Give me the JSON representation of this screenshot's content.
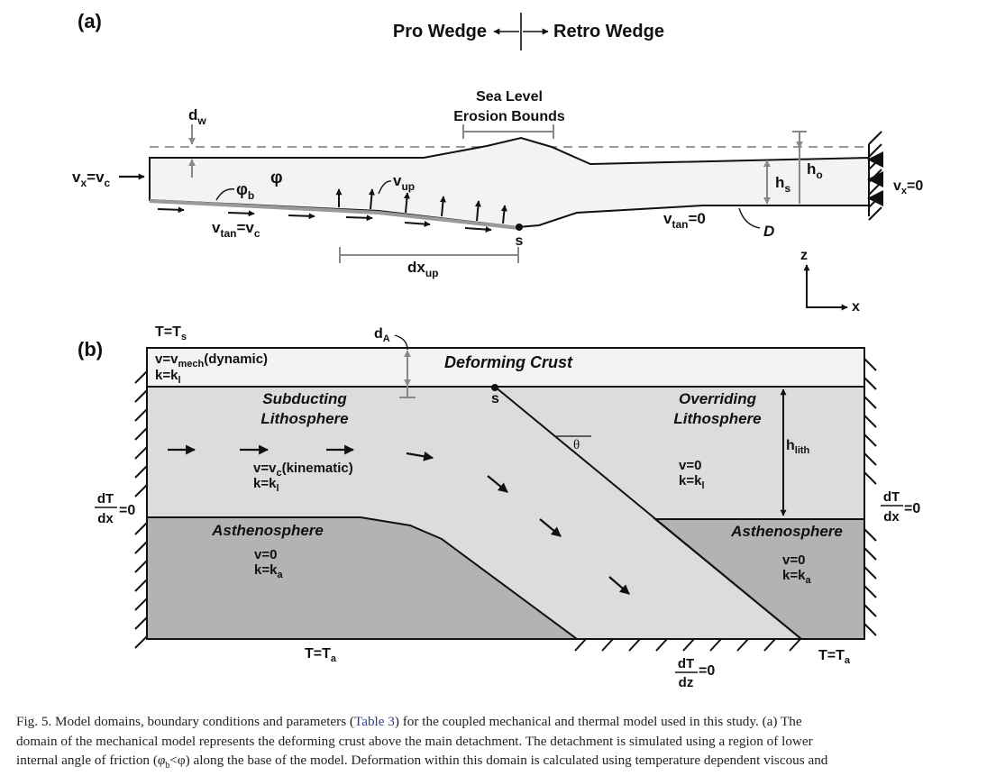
{
  "panel_a": {
    "label": "(a)",
    "header": {
      "pro": "Pro Wedge",
      "retro": "Retro Wedge"
    },
    "sea_level": {
      "line1": "Sea Level",
      "line2": "Erosion Bounds"
    },
    "dw": {
      "base": "d",
      "sub": "w"
    },
    "vx_left": {
      "a": "v",
      "b": "x",
      "c": "=v",
      "d": "c"
    },
    "phi": "φ",
    "phi_b": {
      "base": "φ",
      "sub": "b"
    },
    "v_up": {
      "base": "v",
      "sub": "up"
    },
    "vtan_left": {
      "a": "v",
      "b": "tan",
      "c": "=v",
      "d": "c"
    },
    "s_label": "s",
    "dx_up": {
      "base": "dx",
      "sub": "up"
    },
    "vtan_right": {
      "a": "v",
      "b": "tan",
      "c": "=0"
    },
    "D_label": "D",
    "hs": {
      "base": "h",
      "sub": "s"
    },
    "ho": {
      "base": "h",
      "sub": "o"
    },
    "vx_right": {
      "a": "v",
      "b": "x",
      "c": "=0"
    },
    "axis_z": "z",
    "axis_x": "x"
  },
  "panel_b": {
    "label": "(b)",
    "T_top": {
      "a": "T=T",
      "b": "s"
    },
    "dA": {
      "base": "d",
      "sub": "A"
    },
    "crust_v": {
      "a": "v=v",
      "b": "mech",
      "c": "(dynamic)"
    },
    "crust_k": {
      "a": "k=k",
      "b": "l"
    },
    "deforming_crust": "Deforming Crust",
    "subducting": {
      "line1": "Subducting",
      "line2": "Lithosphere"
    },
    "s_label": "s",
    "theta": "θ",
    "overriding": {
      "line1": "Overriding",
      "line2": "Lithosphere"
    },
    "h_lith": {
      "base": "h",
      "sub": "lith"
    },
    "sub_v": {
      "a": "v=v",
      "b": "c",
      "c": "(kinematic)"
    },
    "sub_k": {
      "a": "k=k",
      "b": "l"
    },
    "over_v": "v=0",
    "over_k": {
      "a": "k=k",
      "b": "l"
    },
    "dTdx_left": {
      "num": "dT",
      "den": "dx",
      "eq": "=0"
    },
    "dTdx_right": {
      "num": "dT",
      "den": "dx",
      "eq": "=0"
    },
    "asth_left": {
      "title": "Asthenosphere",
      "v": "v=0",
      "k_a": "k=k",
      "k_b": "a"
    },
    "asth_right": {
      "title": "Asthenosphere",
      "v": "v=0",
      "k_a": "k=k",
      "k_b": "a"
    },
    "T_bottom_left": {
      "a": "T=T",
      "b": "a"
    },
    "T_bottom_right": {
      "a": "T=T",
      "b": "a"
    },
    "dTdz": {
      "num": "dT",
      "den": "dz",
      "eq": "=0"
    }
  },
  "caption": {
    "l1_a": "Fig. 5. Model domains, boundary conditions and parameters (",
    "l1_ref": "Table 3",
    "l1_b": ") for the coupled mechanical and thermal model used in this study. (a) The",
    "l2": "domain of the mechanical model represents the deforming crust above the main detachment. The detachment is simulated using a region of lower",
    "l3_a": "internal angle of friction (",
    "l3_phi": "φ",
    "l3_sub": "b",
    "l3_b": "<φ) along the base of the model. Deformation within this domain is calculated using temperature dependent viscous and"
  }
}
